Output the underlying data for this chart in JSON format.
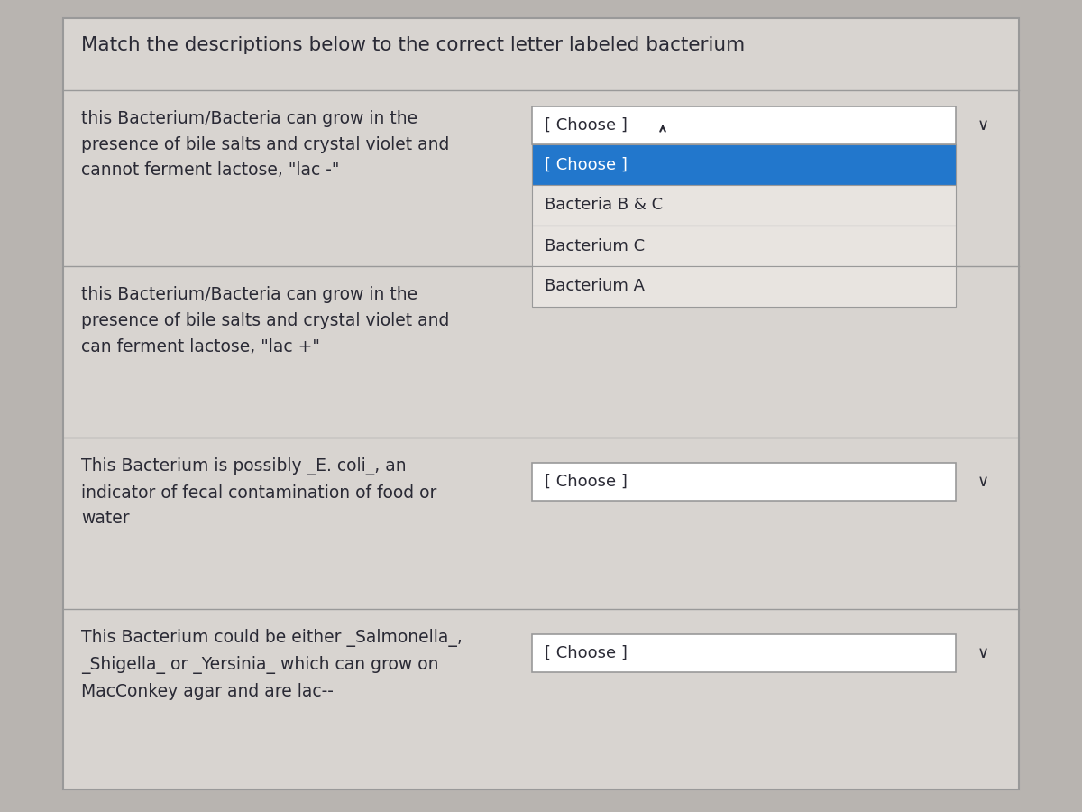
{
  "title": "Match the descriptions below to the correct letter labeled bacterium",
  "title_fontsize": 15.5,
  "outer_bg": "#b8b4b0",
  "panel_bg": "#d8d4d0",
  "row_bg": "#d0ccc8",
  "white": "#ffffff",
  "blue_highlight": "#2277cc",
  "blue_text": "#ffffff",
  "dropdown_item_bg": "#e8e4e0",
  "border_color": "#999999",
  "text_color": "#2a2a35",
  "desc_texts": [
    "this Bacterium/Bacteria can grow in the\npresence of bile salts and crystal violet and\ncannot ferment lactose, \"lac -\"",
    "this Bacterium/Bacteria can grow in the\npresence of bile salts and crystal violet and\ncan ferment lactose, \"lac +\"",
    "This Bacterium is possibly _E. coli_, an\nindicator of fecal contamination of food or\nwater",
    "This Bacterium could be either _Salmonella_,\n_Shigella_ or _Yersinia_ which can grow on\nMacConkey agar and are lac--"
  ],
  "expanded_items": [
    "[ Choose ]",
    "Bacteria B & C",
    "Bacterium C",
    "Bacterium A"
  ],
  "choose_text": "[ Choose ]"
}
